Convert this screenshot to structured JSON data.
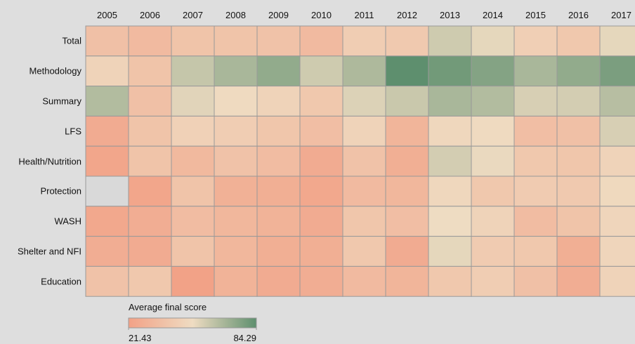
{
  "chart_data": {
    "type": "heatmap",
    "x": [
      "2005",
      "2006",
      "2007",
      "2008",
      "2009",
      "2010",
      "2011",
      "2012",
      "2013",
      "2014",
      "2015",
      "2016",
      "2017"
    ],
    "y": [
      "Total",
      "Methodology",
      "Summary",
      "LFS",
      "Health/Nutrition",
      "Protection",
      "WASH",
      "Shelter and NFI",
      "Education"
    ],
    "values": [
      [
        38,
        35,
        40,
        40,
        39,
        35,
        45,
        43,
        60,
        55,
        46,
        42,
        55
      ],
      [
        48,
        40,
        62,
        68,
        73,
        60,
        67,
        84.29,
        80,
        76,
        68,
        73,
        78
      ],
      [
        66,
        38,
        56,
        52,
        48,
        42,
        57,
        61,
        68,
        66,
        58,
        59,
        65
      ],
      [
        27,
        40,
        47,
        45,
        41,
        37,
        48,
        32,
        50,
        52,
        37,
        38,
        58
      ],
      [
        24,
        40,
        34,
        39,
        36,
        27,
        39,
        29,
        59,
        54,
        42,
        41,
        48
      ],
      [
        null,
        24,
        40,
        30,
        29,
        25,
        35,
        33,
        50,
        42,
        44,
        43,
        51
      ],
      [
        25,
        28,
        36,
        33,
        31,
        27,
        41,
        37,
        53,
        48,
        36,
        40,
        49
      ],
      [
        28,
        27,
        40,
        33,
        29,
        29,
        42,
        27,
        55,
        44,
        42,
        29,
        49
      ],
      [
        39,
        42,
        22,
        31,
        27,
        28,
        35,
        32,
        42,
        45,
        38,
        28,
        48
      ]
    ],
    "zlim": [
      21.43,
      84.29
    ],
    "zticks": [
      21.43,
      84.29
    ],
    "colorbar_title": "Average final score",
    "colorscale": [
      "#f2a186",
      "#efdcc2",
      "#5e8f6e"
    ],
    "null_color": "#d9d9d9"
  }
}
